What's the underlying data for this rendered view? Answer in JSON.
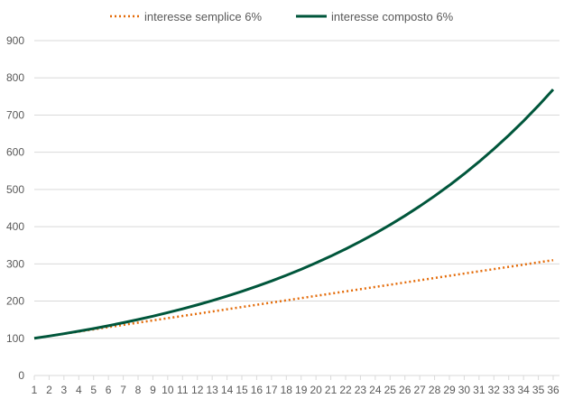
{
  "chart_data": {
    "type": "line",
    "title": "",
    "xlabel": "",
    "ylabel": "",
    "x": [
      1,
      2,
      3,
      4,
      5,
      6,
      7,
      8,
      9,
      10,
      11,
      12,
      13,
      14,
      15,
      16,
      17,
      18,
      19,
      20,
      21,
      22,
      23,
      24,
      25,
      26,
      27,
      28,
      29,
      30,
      31,
      32,
      33,
      34,
      35,
      36
    ],
    "ylim": [
      0,
      900
    ],
    "yticks": [
      0,
      100,
      200,
      300,
      400,
      500,
      600,
      700,
      800,
      900
    ],
    "grid": true,
    "legend_position": "top-center",
    "series": [
      {
        "name": "interesse semplice 6%",
        "style": "dotted",
        "color": "#e46c0a",
        "values": [
          100,
          106,
          112,
          118,
          124,
          130,
          136,
          142,
          148,
          154,
          160,
          166,
          172,
          178,
          184,
          190,
          196,
          202,
          208,
          214,
          220,
          226,
          232,
          238,
          244,
          250,
          256,
          262,
          268,
          274,
          280,
          286,
          292,
          298,
          304,
          310
        ]
      },
      {
        "name": "interesse composto 6%",
        "style": "solid",
        "color": "#00563b",
        "values": [
          100,
          106,
          112.4,
          119.1,
          126.2,
          133.8,
          141.9,
          150.4,
          159.4,
          169,
          179.1,
          189.8,
          201.2,
          213.3,
          226.1,
          239.7,
          254,
          269.3,
          285.4,
          302.6,
          320.7,
          340,
          360.4,
          382,
          404.9,
          429.2,
          455,
          482.3,
          511.2,
          541.9,
          574.4,
          608.8,
          645.3,
          684,
          725.1,
          768.6
        ]
      }
    ]
  }
}
